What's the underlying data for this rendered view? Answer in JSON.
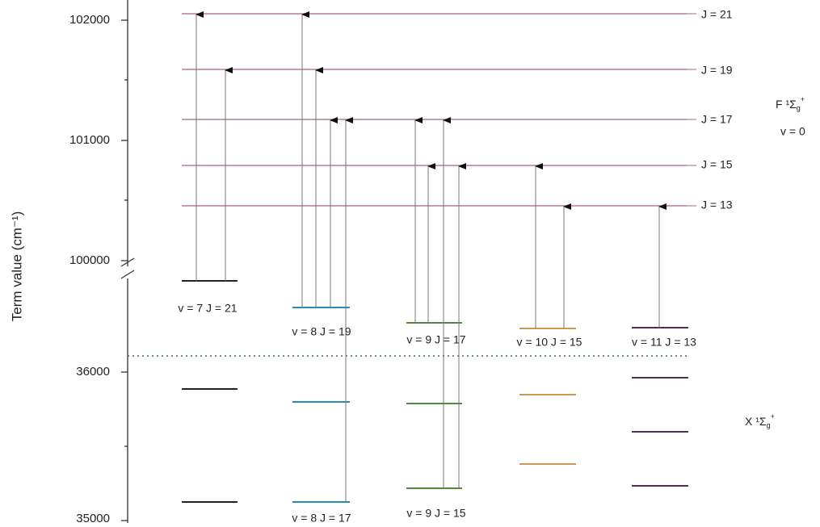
{
  "axis": {
    "label": "Term value (cm⁻¹)",
    "ticks": [
      "102000",
      "101000",
      "100000",
      "36000",
      "35000"
    ]
  },
  "upper_state": {
    "name": "F",
    "term": "¹Σ",
    "sub": "g",
    "sup": "+",
    "vib": "v = 0",
    "levels": [
      "J = 21",
      "J = 19",
      "J = 17",
      "J = 15",
      "J = 13"
    ]
  },
  "lower_state": {
    "name": "X",
    "term": "¹Σ",
    "sub": "g",
    "sup": "+"
  },
  "level_labels": [
    "v = 7 J = 21",
    "v = 8 J = 19",
    "v = 9 J = 17",
    "v = 10 J = 15",
    "v = 11 J = 13",
    "v = 8 J = 17",
    "v = 9 J = 15"
  ]
}
